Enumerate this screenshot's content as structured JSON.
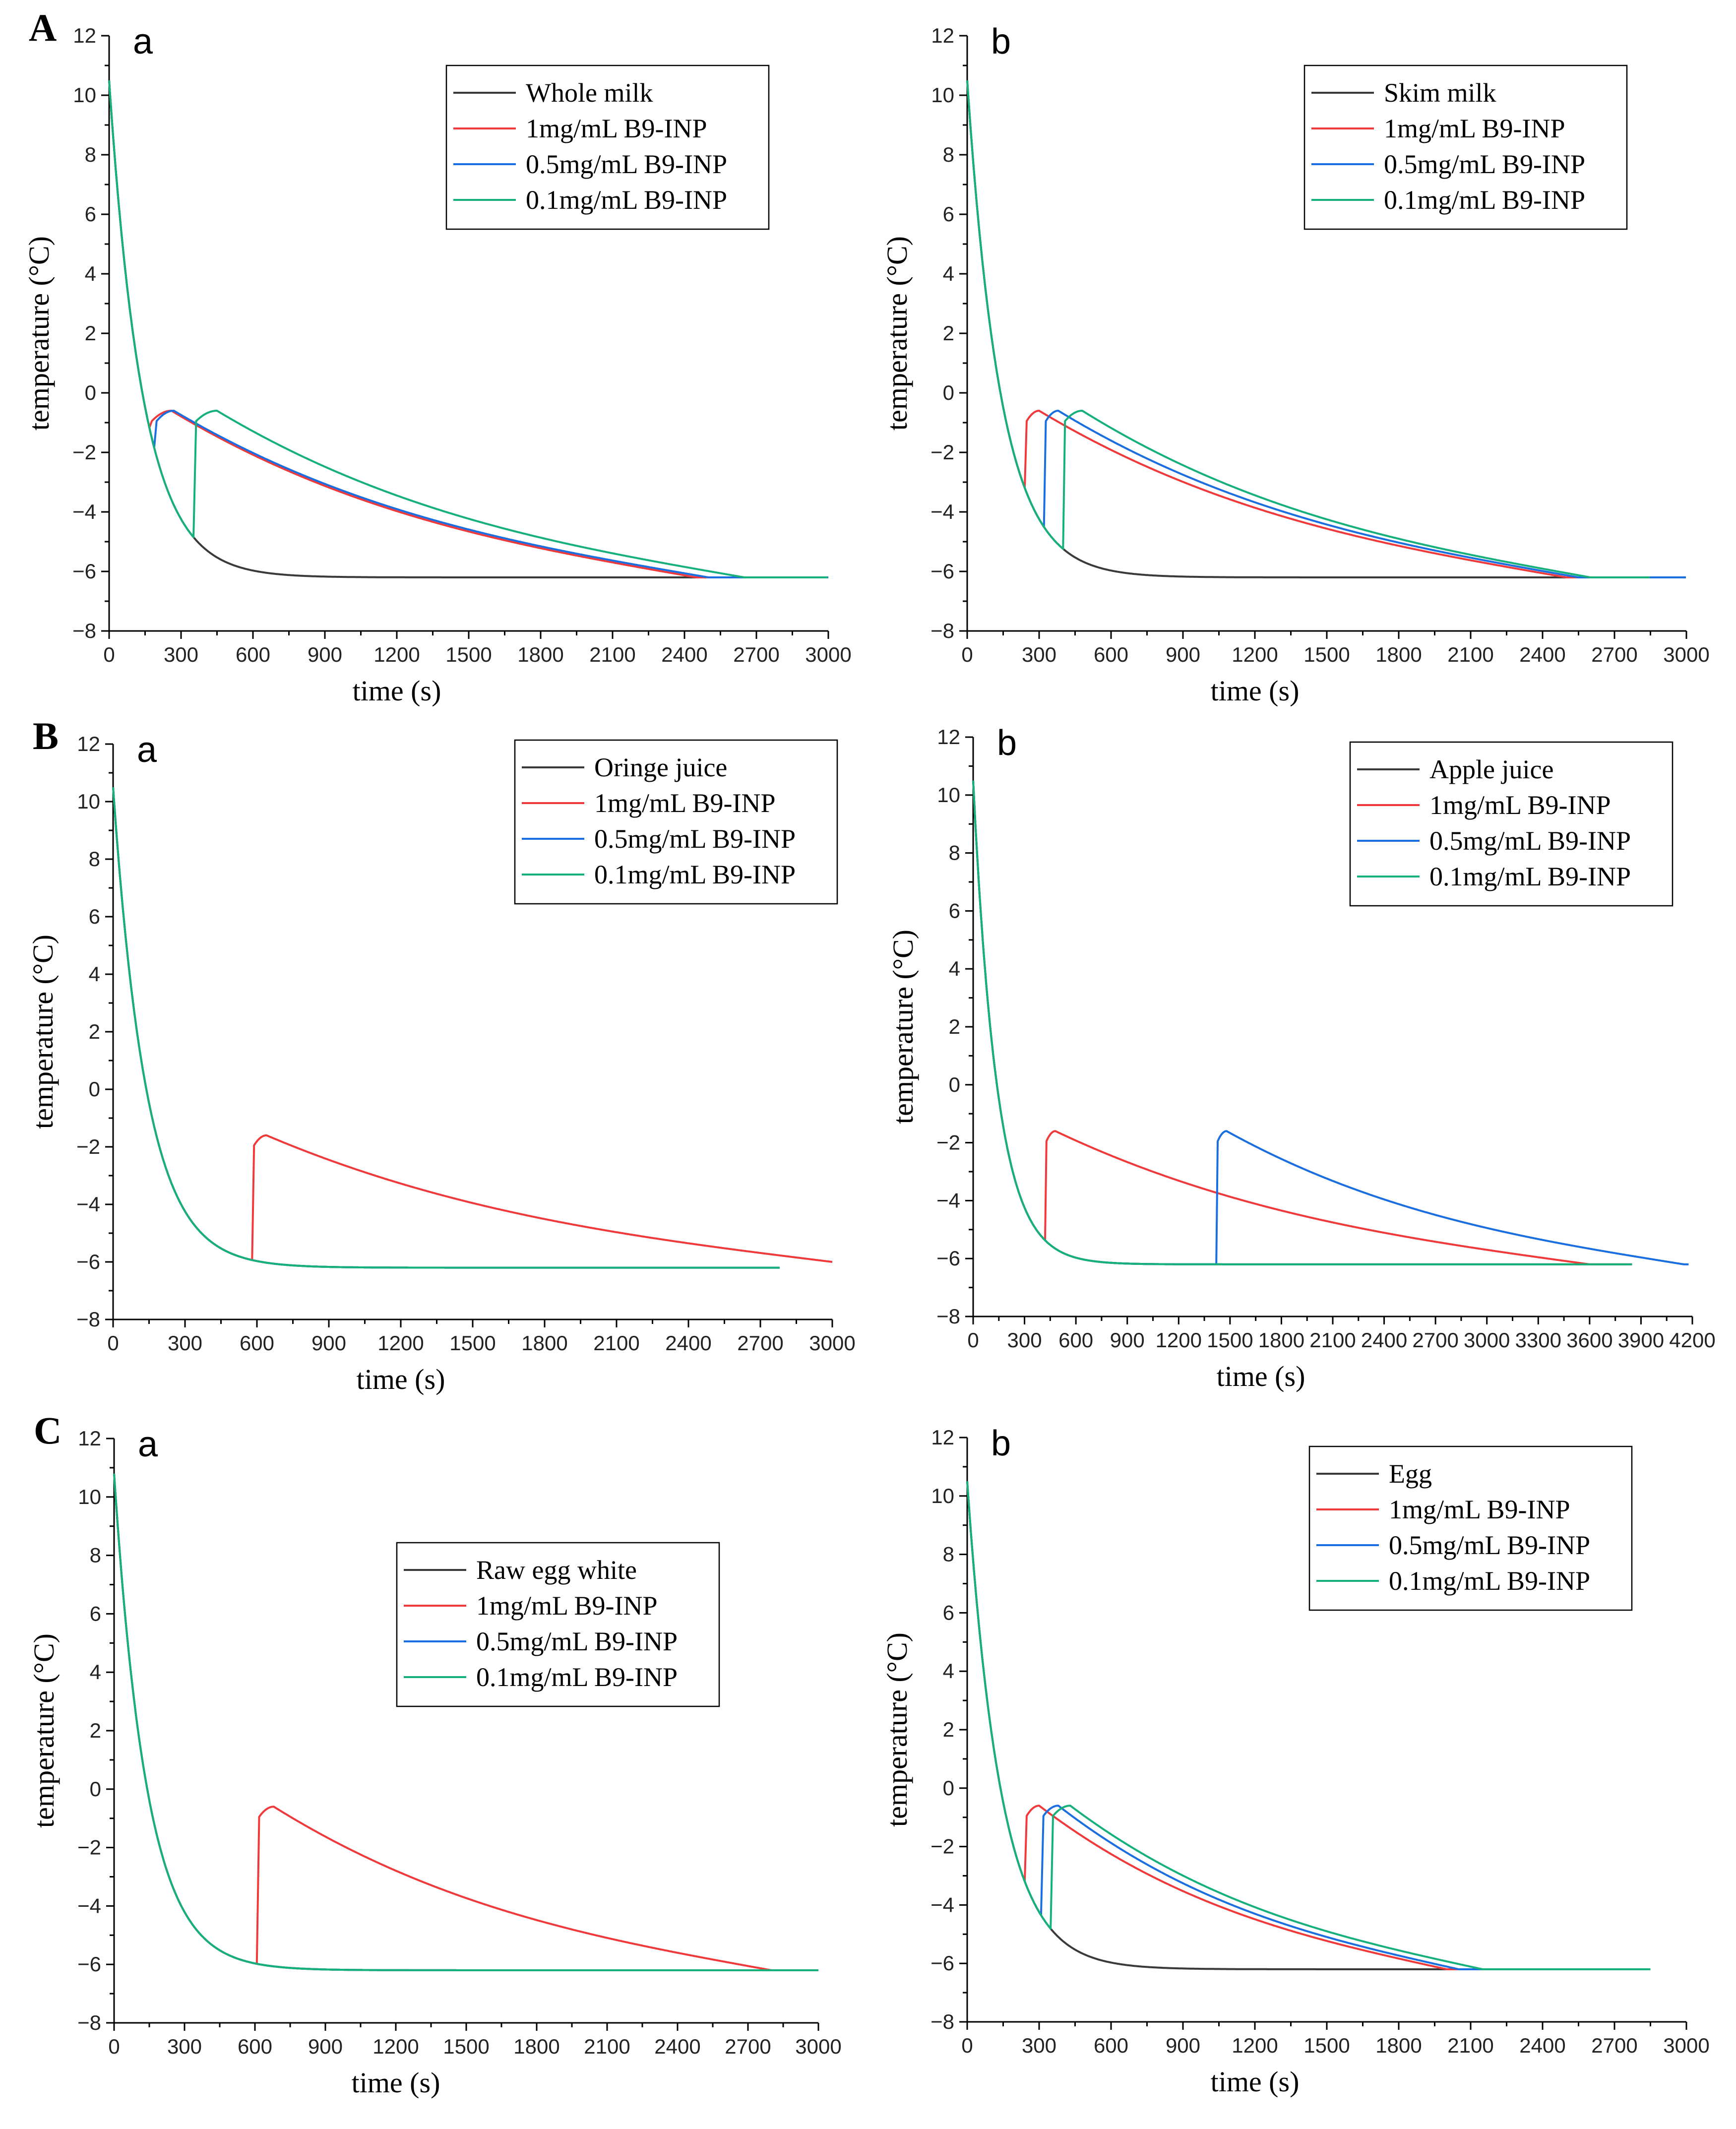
{
  "colors": {
    "control": "#3a3a3a",
    "c1": "#f0393b",
    "c05": "#1a6ee0",
    "c01": "#16b07a"
  },
  "chart_data": [
    {
      "type": "line",
      "panel_label": "A",
      "sub_label": "a",
      "xlabel": "time (s)",
      "ylabel": "temperature (°C)",
      "xlim": [
        0,
        3000
      ],
      "ylim": [
        -8,
        12
      ],
      "xticks": [
        "0",
        "300",
        "600",
        "900",
        "1200",
        "1500",
        "1800",
        "2100",
        "2400",
        "2700",
        "3000"
      ],
      "yticks": [
        "−8",
        "−6",
        "−4",
        "−2",
        "0",
        "2",
        "4",
        "6",
        "8",
        "10",
        "12"
      ],
      "legend": [
        "Whole milk",
        "1mg/mL B9-INP",
        "0.5mg/mL B9-INP",
        "0.1mg/mL B9-INP"
      ],
      "series": [
        {
          "name": "Whole milk",
          "color_key": "control",
          "start": 10.5,
          "nuc": null,
          "end": 3000
        },
        {
          "name": "1mg/mL B9-INP",
          "color_key": "c1",
          "start": 10.5,
          "nuc": 170,
          "peak_t": 260,
          "decay_end": 2450,
          "end": 3000
        },
        {
          "name": "0.5mg/mL B9-INP",
          "color_key": "c05",
          "start": 10.5,
          "nuc": 190,
          "peak_t": 270,
          "decay_end": 2500,
          "end": 3000
        },
        {
          "name": "0.1mg/mL B9-INP",
          "color_key": "c01",
          "start": 10.5,
          "nuc": 355,
          "peak_t": 450,
          "decay_end": 2650,
          "end": 3000
        }
      ]
    },
    {
      "type": "line",
      "panel_label": "",
      "sub_label": "b",
      "xlabel": "time (s)",
      "ylabel": "temperature (°C)",
      "xlim": [
        0,
        3000
      ],
      "ylim": [
        -8,
        12
      ],
      "xticks": [
        "0",
        "300",
        "600",
        "900",
        "1200",
        "1500",
        "1800",
        "2100",
        "2400",
        "2700",
        "3000"
      ],
      "yticks": [
        "−8",
        "−6",
        "−4",
        "−2",
        "0",
        "2",
        "4",
        "6",
        "8",
        "10",
        "12"
      ],
      "legend": [
        "Skim milk",
        "1mg/mL B9-INP",
        "0.5mg/mL B9-INP",
        "0.1mg/mL B9-INP"
      ],
      "series": [
        {
          "name": "Skim milk",
          "color_key": "control",
          "start": 10.5,
          "nuc": null,
          "end": 2850
        },
        {
          "name": "1mg/mL B9-INP",
          "color_key": "c1",
          "start": 10.5,
          "nuc": 240,
          "peak_t": 300,
          "decay_end": 2500,
          "end": 2850
        },
        {
          "name": "0.5mg/mL B9-INP",
          "color_key": "c05",
          "start": 10.5,
          "nuc": 320,
          "peak_t": 380,
          "decay_end": 2550,
          "end": 3000
        },
        {
          "name": "0.1mg/mL B9-INP",
          "color_key": "c01",
          "start": 10.5,
          "nuc": 400,
          "peak_t": 480,
          "decay_end": 2600,
          "end": 2850
        }
      ]
    },
    {
      "type": "line",
      "panel_label": "B",
      "sub_label": "a",
      "xlabel": "time (s)",
      "ylabel": "temperature (°C)",
      "xlim": [
        0,
        3000
      ],
      "ylim": [
        -8,
        12
      ],
      "xticks": [
        "0",
        "300",
        "600",
        "900",
        "1200",
        "1500",
        "1800",
        "2100",
        "2400",
        "2700",
        "3000"
      ],
      "yticks": [
        "−8",
        "−6",
        "−4",
        "−2",
        "0",
        "2",
        "4",
        "6",
        "8",
        "10",
        "12"
      ],
      "legend": [
        "Oringe juice",
        "1mg/mL B9-INP",
        "0.5mg/mL B9-INP",
        "0.1mg/mL B9-INP"
      ],
      "series": [
        {
          "name": "Oringe juice",
          "color_key": "control",
          "start": 10.5,
          "nuc": null,
          "end": 2780
        },
        {
          "name": "1mg/mL B9-INP",
          "color_key": "c1",
          "start": 10.5,
          "nuc": 580,
          "peak_t": 640,
          "peak_v": -1.6,
          "decay_end": 3000,
          "end": 3000,
          "end_v": -6.0
        },
        {
          "name": "0.5mg/mL B9-INP",
          "color_key": "c05",
          "start": 10.5,
          "nuc": null,
          "end": 2780
        },
        {
          "name": "0.1mg/mL B9-INP",
          "color_key": "c01",
          "start": 10.5,
          "nuc": null,
          "end": 2780
        }
      ]
    },
    {
      "type": "line",
      "panel_label": "",
      "sub_label": "b",
      "xlabel": "time (s)",
      "ylabel": "temperature (°C)",
      "xlim": [
        0,
        4200
      ],
      "ylim": [
        -8,
        12
      ],
      "xticks": [
        "0",
        "300",
        "600",
        "900",
        "1200",
        "1500",
        "1800",
        "2100",
        "2400",
        "2700",
        "3000",
        "3300",
        "3600",
        "3900",
        "4200"
      ],
      "yticks": [
        "−8",
        "−6",
        "−4",
        "−2",
        "0",
        "2",
        "4",
        "6",
        "8",
        "10",
        "12"
      ],
      "legend": [
        "Apple juice",
        "1mg/mL B9-INP",
        "0.5mg/mL B9-INP",
        "0.1mg/mL B9-INP"
      ],
      "series": [
        {
          "name": "Apple juice",
          "color_key": "control",
          "start": 10.5,
          "nuc": null,
          "end": 3850
        },
        {
          "name": "1mg/mL B9-INP",
          "color_key": "c1",
          "start": 10.5,
          "nuc": 420,
          "peak_t": 480,
          "peak_v": -1.6,
          "decay_end": 3600,
          "end": 3850
        },
        {
          "name": "0.5mg/mL B9-INP",
          "color_key": "c05",
          "start": 10.5,
          "nuc": 1420,
          "peak_t": 1480,
          "peak_v": -1.6,
          "decay_end": 4150,
          "end": 4180
        },
        {
          "name": "0.1mg/mL B9-INP",
          "color_key": "c01",
          "start": 10.5,
          "nuc": null,
          "end": 3850
        }
      ]
    },
    {
      "type": "line",
      "panel_label": "C",
      "sub_label": "a",
      "xlabel": "time (s)",
      "ylabel": "temperature (°C)",
      "xlim": [
        0,
        3000
      ],
      "ylim": [
        -8,
        12
      ],
      "xticks": [
        "0",
        "300",
        "600",
        "900",
        "1200",
        "1500",
        "1800",
        "2100",
        "2400",
        "2700",
        "3000"
      ],
      "yticks": [
        "−8",
        "−6",
        "−4",
        "−2",
        "0",
        "2",
        "4",
        "6",
        "8",
        "10",
        "12"
      ],
      "legend": [
        "Raw egg white",
        "1mg/mL B9-INP",
        "0.5mg/mL B9-INP",
        "0.1mg/mL B9-INP"
      ],
      "series": [
        {
          "name": "Raw egg white",
          "color_key": "control",
          "start": 10.8,
          "nuc": null,
          "end": 3000
        },
        {
          "name": "1mg/mL B9-INP",
          "color_key": "c1",
          "start": 10.8,
          "nuc": 610,
          "peak_t": 680,
          "peak_v": -0.6,
          "decay_end": 2800,
          "end": 3000
        },
        {
          "name": "0.5mg/mL B9-INP",
          "color_key": "c05",
          "start": 10.8,
          "nuc": null,
          "end": 3000
        },
        {
          "name": "0.1mg/mL B9-INP",
          "color_key": "c01",
          "start": 10.8,
          "nuc": null,
          "end": 3000
        }
      ]
    },
    {
      "type": "line",
      "panel_label": "",
      "sub_label": "b",
      "xlabel": "time (s)",
      "ylabel": "temperature (°C)",
      "xlim": [
        0,
        3000
      ],
      "ylim": [
        -8,
        12
      ],
      "xticks": [
        "0",
        "300",
        "600",
        "900",
        "1200",
        "1500",
        "1800",
        "2100",
        "2400",
        "2700",
        "3000"
      ],
      "yticks": [
        "−8",
        "−6",
        "−4",
        "−2",
        "0",
        "2",
        "4",
        "6",
        "8",
        "10",
        "12"
      ],
      "legend": [
        "Egg",
        "1mg/mL B9-INP",
        "0.5mg/mL B9-INP",
        "0.1mg/mL B9-INP"
      ],
      "series": [
        {
          "name": "Egg",
          "color_key": "control",
          "start": 10.5,
          "nuc": null,
          "end": 2850
        },
        {
          "name": "1mg/mL B9-INP",
          "color_key": "c1",
          "start": 10.5,
          "nuc": 240,
          "peak_t": 300,
          "decay_end": 2000,
          "end": 2850
        },
        {
          "name": "0.5mg/mL B9-INP",
          "color_key": "c05",
          "start": 10.5,
          "nuc": 310,
          "peak_t": 380,
          "decay_end": 2050,
          "end": 2850
        },
        {
          "name": "0.1mg/mL B9-INP",
          "color_key": "c01",
          "start": 10.5,
          "nuc": 350,
          "peak_t": 430,
          "decay_end": 2150,
          "end": 2850
        }
      ]
    }
  ]
}
